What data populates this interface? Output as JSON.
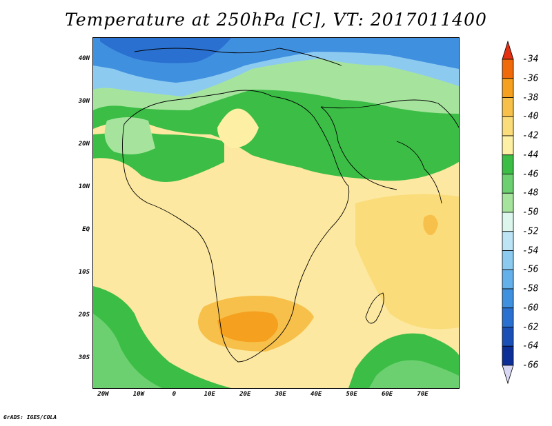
{
  "title": "Temperature at 250hPa [C], VT: 2017011400",
  "footer": "GrADS: IGES/COLA",
  "map": {
    "lon_range": [
      -23,
      80
    ],
    "lat_range": [
      -37,
      45
    ],
    "lat_labels": [
      {
        "lat": 40,
        "text": "40N"
      },
      {
        "lat": 30,
        "text": "30N"
      },
      {
        "lat": 20,
        "text": "20N"
      },
      {
        "lat": 10,
        "text": "10N"
      },
      {
        "lat": 0,
        "text": "EQ"
      },
      {
        "lat": -10,
        "text": "10S"
      },
      {
        "lat": -20,
        "text": "20S"
      },
      {
        "lat": -30,
        "text": "30S"
      }
    ],
    "lon_labels": [
      {
        "lon": -20,
        "text": "20W"
      },
      {
        "lon": -10,
        "text": "10W"
      },
      {
        "lon": 0,
        "text": "0"
      },
      {
        "lon": 10,
        "text": "10E"
      },
      {
        "lon": 20,
        "text": "20E"
      },
      {
        "lon": 30,
        "text": "30E"
      },
      {
        "lon": 40,
        "text": "40E"
      },
      {
        "lon": 50,
        "text": "50E"
      },
      {
        "lon": 60,
        "text": "60E"
      },
      {
        "lon": 70,
        "text": "70E"
      }
    ]
  },
  "colorbar": {
    "labels": [
      "-34",
      "-36",
      "-38",
      "-40",
      "-42",
      "-44",
      "-46",
      "-48",
      "-50",
      "-52",
      "-54",
      "-56",
      "-58",
      "-60",
      "-62",
      "-64",
      "-66"
    ],
    "colors": [
      "#e33012",
      "#f06a0a",
      "#f5a01e",
      "#f7c04a",
      "#fadc7a",
      "#fdf0a5",
      "#3cbd46",
      "#6cd070",
      "#a6e49e",
      "#dcf6ee",
      "#bde4f4",
      "#8ccaf0",
      "#64b0ea",
      "#4090e0",
      "#2a70d0",
      "#1a50b6",
      "#0c2e96",
      "#081566"
    ]
  }
}
